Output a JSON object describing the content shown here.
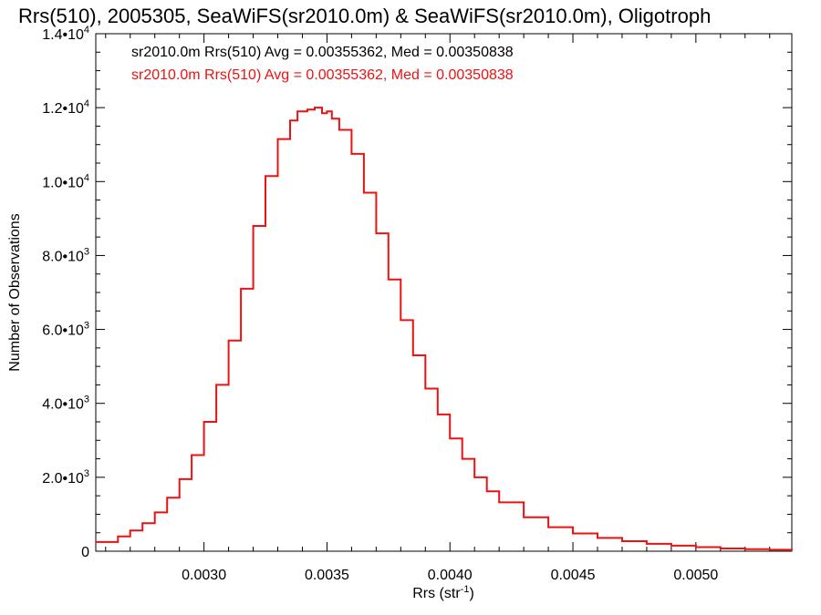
{
  "chart_data": {
    "type": "histogram",
    "title": "Rrs(510), 2005305, SeaWiFS(sr2010.0m) & SeaWiFS(sr2010.0m), Oligotroph",
    "xlabel": "Rrs (str",
    "xlabel_sup": "-1",
    "xlabel_close": ")",
    "ylabel": "Number of Observations",
    "xlim": [
      0.00256,
      0.00539
    ],
    "ylim": [
      0,
      14000
    ],
    "x_ticks": [
      0.003,
      0.0035,
      0.004,
      0.0045,
      0.005
    ],
    "x_tick_labels": [
      "0.0030",
      "0.0035",
      "0.0040",
      "0.0045",
      "0.0050"
    ],
    "y_ticks": [
      0,
      2000,
      4000,
      6000,
      8000,
      10000,
      12000,
      14000
    ],
    "y_tick_labels": [
      {
        "base": "0",
        "exp": ""
      },
      {
        "base": "2.0•10",
        "exp": "3"
      },
      {
        "base": "4.0•10",
        "exp": "3"
      },
      {
        "base": "6.0•10",
        "exp": "3"
      },
      {
        "base": "8.0•10",
        "exp": "3"
      },
      {
        "base": "1.0•10",
        "exp": "4"
      },
      {
        "base": "1.2•10",
        "exp": "4"
      },
      {
        "base": "1.4•10",
        "exp": "4"
      }
    ],
    "legend": [
      {
        "text": "sr2010.0m Rrs(510) Avg = 0.00355362, Med = 0.00350838",
        "color": "#000000"
      },
      {
        "text": "sr2010.0m Rrs(510) Avg = 0.00355362, Med = 0.00350838",
        "color": "#ee1111"
      }
    ],
    "legend_position": "top-left",
    "series": [
      {
        "color": "#ee1111",
        "style": "step",
        "x": [
          0.00256,
          0.00265,
          0.0027,
          0.00275,
          0.0028,
          0.00285,
          0.0029,
          0.00295,
          0.003,
          0.00305,
          0.0031,
          0.00315,
          0.0032,
          0.00325,
          0.0033,
          0.00335,
          0.00338,
          0.00342,
          0.00345,
          0.00348,
          0.0035,
          0.00352,
          0.00355,
          0.0036,
          0.00365,
          0.0037,
          0.00375,
          0.0038,
          0.00385,
          0.0039,
          0.00395,
          0.004,
          0.00405,
          0.0041,
          0.00415,
          0.0042,
          0.0043,
          0.0044,
          0.0045,
          0.0046,
          0.0047,
          0.0048,
          0.0049,
          0.005,
          0.0051,
          0.0052,
          0.0053,
          0.00539
        ],
        "values": [
          250,
          400,
          560,
          760,
          1050,
          1450,
          1950,
          2600,
          3500,
          4500,
          5700,
          7100,
          8800,
          10150,
          11150,
          11650,
          11900,
          11950,
          12000,
          11850,
          11900,
          11700,
          11400,
          10750,
          9700,
          8600,
          7350,
          6250,
          5300,
          4400,
          3700,
          3050,
          2500,
          2000,
          1620,
          1320,
          920,
          650,
          480,
          360,
          270,
          200,
          150,
          110,
          75,
          55,
          40,
          30
        ]
      }
    ]
  }
}
